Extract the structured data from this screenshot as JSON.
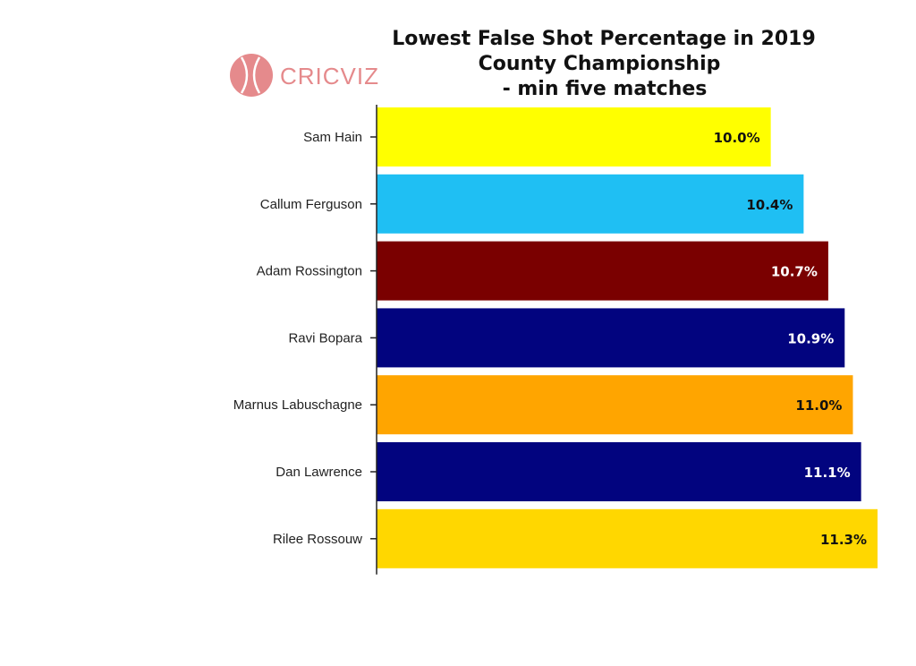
{
  "brand": {
    "name": "CRICVIZ",
    "icon": "cricket-ball-logo-icon",
    "color": "#e58a8c"
  },
  "chart_data": {
    "type": "bar",
    "orientation": "horizontal",
    "title_lines": [
      "Lowest False Shot Percentage in 2019",
      "County Championship",
      "- min five matches"
    ],
    "categories": [
      "Sam Hain",
      "Callum Ferguson",
      "Adam Rossington",
      "Ravi Bopara",
      "Marnus Labuschagne",
      "Dan Lawrence",
      "Rilee Rossouw"
    ],
    "values": [
      10.0,
      10.4,
      10.7,
      10.9,
      11.0,
      11.1,
      11.3
    ],
    "value_labels": [
      "10.0%",
      "10.4%",
      "10.7%",
      "10.9%",
      "11.0%",
      "11.1%",
      "11.3%"
    ],
    "colors": [
      "#ffff00",
      "#1fbff3",
      "#7a0000",
      "#02047f",
      "#ffa500",
      "#02047f",
      "#ffd700"
    ],
    "label_colors": [
      "#111111",
      "#111111",
      "#ffffff",
      "#ffffff",
      "#111111",
      "#ffffff",
      "#111111"
    ],
    "xlim": [
      5.2,
      11.3
    ],
    "xlabel": "",
    "ylabel": "",
    "grid": false,
    "legend": "none"
  }
}
